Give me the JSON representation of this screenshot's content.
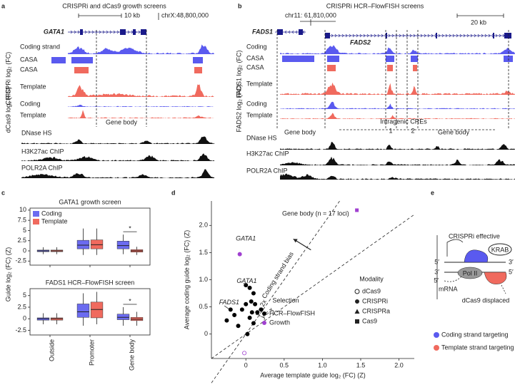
{
  "panel_a": {
    "label": "a",
    "title": "CRISPRi and dCas9 growth screens",
    "scale": "10 kb",
    "coordinate": "chrX:48,800,000",
    "gene": "GATA1",
    "tracks": [
      "Coding strand",
      "CASA",
      "CASA",
      "Template",
      "Coding",
      "Template"
    ],
    "group_labels": [
      "CRISPRi log₂ (FC)",
      "dCas9 log₂ (FC)"
    ],
    "region": "Gene body",
    "chromatin": [
      "DNase HS",
      "H3K27ac ChIP",
      "POLR2A ChIP"
    ]
  },
  "panel_b": {
    "label": "b",
    "title": "CRISPRi HCR–FlowFISH screens",
    "coordinate": "chr11: 61,810,000",
    "scale": "20 kb",
    "genes": [
      "FADS1",
      "FADS2"
    ],
    "tracks": [
      "Coding",
      "CASA",
      "CASA",
      "Template",
      "Coding",
      "Template"
    ],
    "group_labels": [
      "FADS1 log₂ (FC)",
      "FADS2 log₂ (FC)"
    ],
    "regions": [
      "Gene body",
      "Intragenic CREs",
      "1",
      "2",
      "Gene body"
    ],
    "chromatin": [
      "DNase HS",
      "H3K27ac ChIP",
      "POLR2A ChIP"
    ]
  },
  "panel_c": {
    "label": "c",
    "y_label": "Guide log₂ (FC) (Z)"
  },
  "panel_d": {
    "label": "d"
  },
  "chart_data": [
    {
      "type": "box",
      "title": "GATA1 growth screen",
      "categories": [
        "Outside",
        "Promoter",
        "Gene body"
      ],
      "ylim": [
        -3.5,
        10.5
      ],
      "yticks": [
        -2.5,
        0,
        2.5,
        5,
        7.5,
        10
      ],
      "annotations": [
        "*"
      ],
      "series": [
        {
          "name": "Coding",
          "color": "#6b6bf0",
          "min": [
            -0.8,
            -1,
            -0.8
          ],
          "q1": [
            -0.2,
            0.5,
            0.5
          ],
          "median": [
            0,
            1.4,
            1.3
          ],
          "q3": [
            0.2,
            2.6,
            2.4
          ],
          "max": [
            0.9,
            5.5,
            4
          ]
        },
        {
          "name": "Template",
          "color": "#f06a5e",
          "min": [
            -0.8,
            -1,
            -1
          ],
          "q1": [
            -0.2,
            0.5,
            -0.3
          ],
          "median": [
            0,
            1.5,
            0
          ],
          "q3": [
            0.2,
            2.7,
            0.3
          ],
          "max": [
            0.9,
            5.5,
            1
          ]
        }
      ]
    },
    {
      "type": "box",
      "title": "FADS1 HCR–FlowFISH screen",
      "categories": [
        "Outside",
        "Promoter",
        "Gene body"
      ],
      "ylim": [
        -3.5,
        6.5
      ],
      "yticks": [
        -2.5,
        0,
        2.5,
        5
      ],
      "annotations": [
        "*"
      ],
      "series": [
        {
          "name": "Coding",
          "color": "#6b6bf0",
          "min": [
            -1.2,
            -1.5,
            -1.5
          ],
          "q1": [
            -0.3,
            0.3,
            -0.2
          ],
          "median": [
            0,
            1.5,
            0.3
          ],
          "q3": [
            0.2,
            3.2,
            1
          ],
          "max": [
            1.2,
            5.5,
            2.5
          ]
        },
        {
          "name": "Template",
          "color": "#f06a5e",
          "min": [
            -1.2,
            -1.2,
            -1.5
          ],
          "q1": [
            -0.3,
            0.2,
            -0.4
          ],
          "median": [
            0,
            2,
            -0.1
          ],
          "q3": [
            0.2,
            3.6,
            0.3
          ],
          "max": [
            1.2,
            5.8,
            1.5
          ]
        }
      ]
    },
    {
      "type": "scatter",
      "xlabel": "Average template guide log₂ (FC) (Z)",
      "ylabel": "Average coding guide log₂ (FC) (Z)",
      "xlim": [
        -0.45,
        2.2
      ],
      "ylim": [
        -0.45,
        2.45
      ],
      "xticks": [
        0,
        0.5,
        {
          "value": 1,
          "label": "1.0"
        },
        1.5,
        {
          "value": 2,
          "label": "2.0"
        }
      ],
      "yticks": [
        0,
        0.5,
        {
          "value": 1,
          "label": "1.0"
        },
        1.5,
        {
          "value": 2,
          "label": "2.0"
        }
      ],
      "legend_titles": [
        "Selection",
        "Modality"
      ],
      "modalities": [
        "dCas9",
        "CRISPRi",
        "CRISPRa",
        "Cas9"
      ],
      "series": [
        {
          "name": "HCR–FlowFISH",
          "color": "#000000",
          "x": [
            0,
            0.05,
            0.1,
            0.07,
            0.12,
            0.2,
            0.15,
            0,
            -0.05,
            0.05,
            0.1,
            -0.2,
            -0.15,
            -0.1,
            -0.25,
            0.02,
            0.08
          ],
          "y": [
            0.9,
            0.85,
            0.75,
            0.6,
            0.55,
            0.45,
            0.4,
            0.55,
            0.45,
            0.3,
            0.2,
            0.45,
            0.35,
            0.15,
            0.25,
            0,
            0.4
          ],
          "modality": [
            "CRISPRi",
            "CRISPRi",
            "CRISPRi",
            "CRISPRi",
            "CRISPRi",
            "CRISPRi",
            "CRISPRi",
            "CRISPRi",
            "CRISPRi",
            "CRISPRi",
            "CRISPRi",
            "CRISPRi",
            "CRISPRi",
            "CRISPRi",
            "CRISPRi",
            "CRISPRi",
            "CRISPRi"
          ]
        },
        {
          "name": "Growth",
          "color": "#a040d0",
          "x": [
            -0.02,
            -0.08,
            1.45
          ],
          "y": [
            -0.35,
            1.47,
            2.28
          ],
          "modality": [
            "dCas9",
            "CRISPRi",
            "Cas9"
          ]
        }
      ],
      "lines": [
        {
          "label": "y = x",
          "slope": 1
        },
        {
          "label": "y = 2x",
          "slope": 2
        }
      ],
      "annotations": [
        "Gene body (n = 17 loci)",
        "Coding strand bias",
        "GATA1",
        "FADS1",
        "GATA1"
      ]
    }
  ],
  "panel_e": {
    "label": "e",
    "texts": [
      "CRISPRi effective",
      "KRAB",
      "5′",
      "3′",
      "3′",
      "5′",
      "5′",
      "mRNA",
      "Pol II",
      "dCas9 displaced"
    ],
    "legend": [
      "Coding strand targeting",
      "Template strand targeting"
    ]
  }
}
